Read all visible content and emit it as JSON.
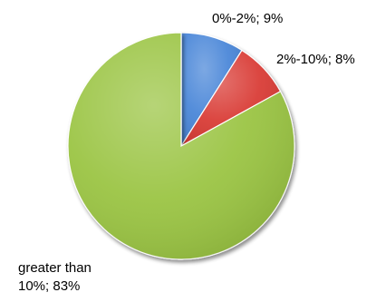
{
  "chart_data": {
    "type": "pie",
    "title": "",
    "categories": [
      "0%-2%",
      "2%-10%",
      "greater than 10%"
    ],
    "values": [
      9,
      8,
      83
    ],
    "colors": [
      "#4a86d8",
      "#d93a34",
      "#9ac443"
    ],
    "start": "top",
    "direction": "clockwise",
    "style": "3d-shaded",
    "legend": "none",
    "labels": [
      {
        "lines": [
          "0%-2%; 9%"
        ]
      },
      {
        "lines": [
          "2%-10%; 8%"
        ]
      },
      {
        "lines": [
          "greater than",
          "10%; 83%"
        ]
      }
    ]
  }
}
